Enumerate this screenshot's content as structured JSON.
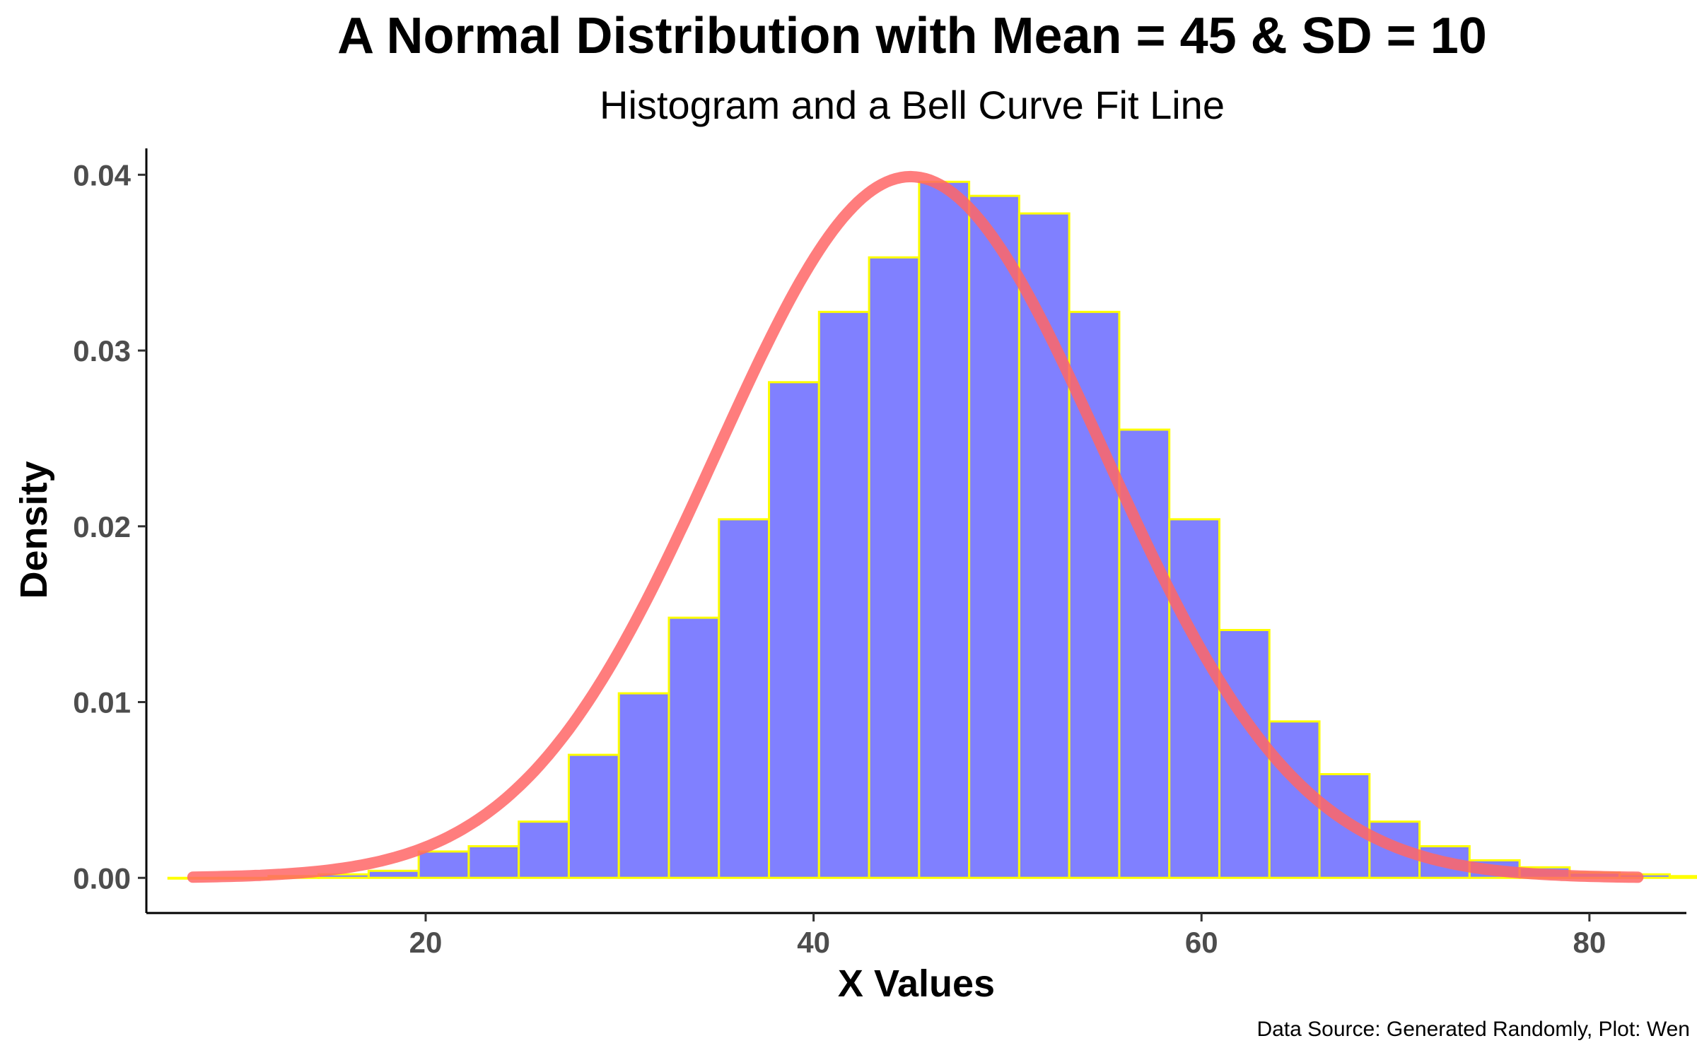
{
  "chart_data": {
    "type": "bar",
    "title": "A Normal Distribution with Mean = 45 & SD = 10",
    "subtitle": "Histogram and a Bell Curve Fit Line",
    "xlabel": "X Values",
    "ylabel": "Density",
    "caption": "Data Source: Generated Randomly, Plot: Wen",
    "xlim": [
      5.6,
      85.0
    ],
    "ylim": [
      -0.002,
      0.0415
    ],
    "xticks": [
      20,
      40,
      60,
      80
    ],
    "yticks": [
      0.0,
      0.01,
      0.02,
      0.03,
      0.04
    ],
    "ytick_labels": [
      "0.00",
      "0.01",
      "0.02",
      "0.03",
      "0.04"
    ],
    "grid": false,
    "bin_width": 2.58,
    "bin_start": 6.74,
    "densities": [
      0.0,
      0.0,
      0.0001,
      0.0002,
      0.0004,
      0.0015,
      0.0018,
      0.0032,
      0.007,
      0.0105,
      0.0148,
      0.0204,
      0.0282,
      0.0322,
      0.0353,
      0.0396,
      0.0388,
      0.0378,
      0.0322,
      0.0255,
      0.0204,
      0.0141,
      0.0089,
      0.0059,
      0.0032,
      0.0018,
      0.001,
      0.0006,
      0.0003,
      0.0002,
      0.0001
    ],
    "curve": {
      "type": "normal-density",
      "mean": 45,
      "sd": 10,
      "x_range": [
        8,
        82.5
      ]
    },
    "colors": {
      "bar_fill": "#8080ff",
      "bar_border": "#ffff00",
      "curve": "#ff6666",
      "axis": "#000000",
      "tick_label": "#4d4d4d"
    }
  }
}
